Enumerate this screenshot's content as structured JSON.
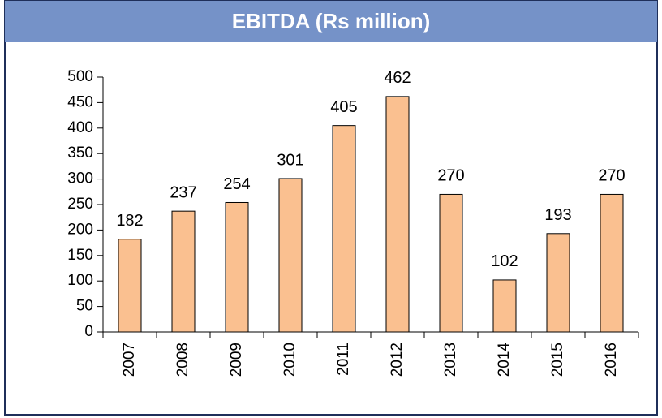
{
  "chart_data": {
    "type": "bar",
    "title": "EBITDA (Rs million)",
    "categories": [
      "2007",
      "2008",
      "2009",
      "2010",
      "2011",
      "2012",
      "2013",
      "2014",
      "2015",
      "2016"
    ],
    "values": [
      182,
      237,
      254,
      301,
      405,
      462,
      270,
      102,
      193,
      270
    ],
    "color": "#fac090",
    "ylim": [
      0,
      500
    ],
    "yticks": [
      0,
      50,
      100,
      150,
      200,
      250,
      300,
      350,
      400,
      450,
      500
    ],
    "grid": false
  }
}
